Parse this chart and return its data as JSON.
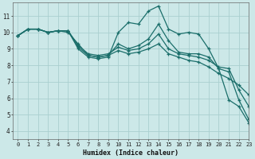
{
  "title": "",
  "xlabel": "Humidex (Indice chaleur)",
  "ylabel": "",
  "xlim": [
    -0.5,
    23
  ],
  "ylim": [
    3.5,
    11.8
  ],
  "yticks": [
    4,
    5,
    6,
    7,
    8,
    9,
    10,
    11
  ],
  "xticks": [
    0,
    1,
    2,
    3,
    4,
    5,
    6,
    7,
    8,
    9,
    10,
    11,
    12,
    13,
    14,
    15,
    16,
    17,
    18,
    19,
    20,
    21,
    22,
    23
  ],
  "bg_color": "#cce8e8",
  "line_color": "#1a6e6a",
  "grid_color": "#aacfcf",
  "series": [
    {
      "x": [
        0,
        1,
        2,
        3,
        4,
        5,
        6,
        7,
        8,
        9,
        10,
        11,
        12,
        13,
        14,
        15,
        16,
        17,
        18,
        19,
        20,
        21,
        22,
        23
      ],
      "y": [
        9.8,
        10.2,
        10.2,
        10.0,
        10.1,
        10.1,
        9.0,
        8.5,
        8.4,
        8.5,
        10.0,
        10.6,
        10.5,
        11.3,
        11.6,
        10.2,
        9.9,
        10.0,
        9.9,
        9.0,
        7.8,
        5.9,
        5.5,
        4.5
      ]
    },
    {
      "x": [
        0,
        1,
        2,
        3,
        4,
        5,
        6,
        7,
        8,
        9,
        10,
        11,
        12,
        13,
        14,
        15,
        16,
        17,
        18,
        19,
        20,
        21,
        22,
        23
      ],
      "y": [
        9.8,
        10.2,
        10.2,
        10.0,
        10.1,
        10.1,
        9.1,
        8.6,
        8.5,
        8.6,
        9.3,
        9.0,
        9.2,
        9.6,
        10.5,
        9.5,
        8.8,
        8.7,
        8.7,
        8.5,
        7.8,
        7.6,
        5.9,
        4.7
      ]
    },
    {
      "x": [
        0,
        1,
        2,
        3,
        4,
        5,
        6,
        7,
        8,
        9,
        10,
        11,
        12,
        13,
        14,
        15,
        16,
        17,
        18,
        19,
        20,
        21,
        22,
        23
      ],
      "y": [
        9.8,
        10.2,
        10.2,
        10.0,
        10.1,
        10.1,
        9.2,
        8.7,
        8.6,
        8.7,
        9.1,
        8.9,
        9.0,
        9.3,
        9.9,
        9.0,
        8.7,
        8.6,
        8.5,
        8.3,
        7.9,
        7.8,
        6.5,
        5.5
      ]
    },
    {
      "x": [
        0,
        1,
        2,
        3,
        4,
        5,
        6,
        7,
        8,
        9,
        10,
        11,
        12,
        13,
        14,
        15,
        16,
        17,
        18,
        19,
        20,
        21,
        22,
        23
      ],
      "y": [
        9.8,
        10.2,
        10.2,
        10.0,
        10.1,
        10.0,
        9.3,
        8.6,
        8.5,
        8.6,
        8.9,
        8.7,
        8.8,
        9.0,
        9.3,
        8.7,
        8.5,
        8.3,
        8.2,
        7.9,
        7.5,
        7.2,
        6.8,
        6.2
      ]
    }
  ]
}
